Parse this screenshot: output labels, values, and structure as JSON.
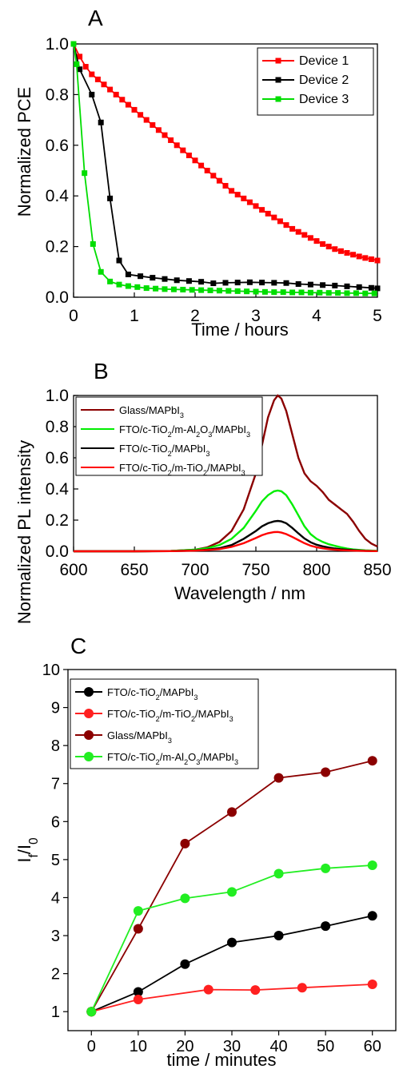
{
  "chart_data": [
    {
      "type": "line",
      "panel_label": "A",
      "xlabel": "Time / hours",
      "ylabel": "Normalized PCE",
      "xlim": [
        0,
        5
      ],
      "ylim": [
        0,
        1.0
      ],
      "x_ticks": [
        "0",
        "1",
        "2",
        "3",
        "4",
        "5"
      ],
      "y_ticks": [
        "0.0",
        "0.2",
        "0.4",
        "0.6",
        "0.8",
        "1.0"
      ],
      "legend_position": "top-right",
      "series": [
        {
          "name": "Device 1",
          "color": "#ff0000",
          "marker": "square",
          "x": [
            0.0,
            0.1,
            0.2,
            0.3,
            0.4,
            0.5,
            0.6,
            0.7,
            0.8,
            0.9,
            1.0,
            1.1,
            1.2,
            1.3,
            1.4,
            1.5,
            1.6,
            1.7,
            1.8,
            1.9,
            2.0,
            2.1,
            2.2,
            2.3,
            2.4,
            2.5,
            2.6,
            2.7,
            2.8,
            2.9,
            3.0,
            3.1,
            3.2,
            3.3,
            3.4,
            3.5,
            3.6,
            3.7,
            3.8,
            3.9,
            4.0,
            4.1,
            4.2,
            4.3,
            4.4,
            4.5,
            4.6,
            4.7,
            4.8,
            4.9,
            5.0
          ],
          "y": [
            1.0,
            0.95,
            0.91,
            0.88,
            0.86,
            0.84,
            0.82,
            0.8,
            0.78,
            0.76,
            0.74,
            0.72,
            0.7,
            0.68,
            0.66,
            0.64,
            0.62,
            0.6,
            0.58,
            0.56,
            0.54,
            0.52,
            0.5,
            0.48,
            0.46,
            0.44,
            0.42,
            0.405,
            0.39,
            0.375,
            0.36,
            0.345,
            0.33,
            0.315,
            0.3,
            0.285,
            0.27,
            0.258,
            0.246,
            0.234,
            0.222,
            0.21,
            0.2,
            0.19,
            0.182,
            0.175,
            0.168,
            0.161,
            0.155,
            0.15,
            0.145
          ]
        },
        {
          "name": "Device 2",
          "color": "#000000",
          "marker": "square",
          "x": [
            0.0,
            0.1,
            0.3,
            0.45,
            0.6,
            0.75,
            0.9,
            1.1,
            1.3,
            1.5,
            1.7,
            1.9,
            2.1,
            2.3,
            2.5,
            2.7,
            2.9,
            3.1,
            3.3,
            3.5,
            3.7,
            3.9,
            4.1,
            4.3,
            4.5,
            4.7,
            4.9,
            5.0
          ],
          "y": [
            1.0,
            0.9,
            0.8,
            0.69,
            0.39,
            0.145,
            0.09,
            0.083,
            0.077,
            0.072,
            0.067,
            0.064,
            0.061,
            0.055,
            0.057,
            0.058,
            0.059,
            0.058,
            0.057,
            0.056,
            0.052,
            0.05,
            0.048,
            0.046,
            0.043,
            0.04,
            0.037,
            0.035
          ]
        },
        {
          "name": "Device 3",
          "color": "#00dd00",
          "marker": "square",
          "x": [
            0.0,
            0.05,
            0.18,
            0.32,
            0.45,
            0.6,
            0.75,
            0.9,
            1.05,
            1.2,
            1.35,
            1.5,
            1.65,
            1.8,
            1.95,
            2.1,
            2.25,
            2.4,
            2.55,
            2.7,
            2.85,
            3.0,
            3.15,
            3.3,
            3.45,
            3.6,
            3.75,
            3.9,
            4.05,
            4.2,
            4.35,
            4.5,
            4.65,
            4.8,
            4.95
          ],
          "y": [
            1.0,
            0.92,
            0.49,
            0.21,
            0.1,
            0.062,
            0.05,
            0.044,
            0.04,
            0.036,
            0.034,
            0.032,
            0.031,
            0.03,
            0.029,
            0.028,
            0.027,
            0.026,
            0.025,
            0.024,
            0.023,
            0.022,
            0.021,
            0.02,
            0.02,
            0.019,
            0.019,
            0.018,
            0.018,
            0.017,
            0.017,
            0.016,
            0.016,
            0.015,
            0.015
          ]
        }
      ]
    },
    {
      "type": "line",
      "panel_label": "B",
      "xlabel": "Wavelength / nm",
      "ylabel": "Normalized PL intensity",
      "xlim": [
        600,
        850
      ],
      "ylim": [
        0,
        1.0
      ],
      "x_ticks": [
        "600",
        "650",
        "700",
        "750",
        "800",
        "850"
      ],
      "y_ticks": [
        "0.0",
        "0.2",
        "0.4",
        "0.6",
        "0.8",
        "1.0"
      ],
      "legend_position": "top-left",
      "series": [
        {
          "name_parts": [
            [
              "Glass/MAPbI",
              ""
            ],
            [
              "3",
              "sub"
            ]
          ],
          "color": "#8b0000",
          "x": [
            600,
            650,
            680,
            700,
            710,
            720,
            730,
            740,
            750,
            755,
            760,
            765,
            768,
            771,
            775,
            780,
            785,
            790,
            795,
            800,
            805,
            810,
            815,
            820,
            825,
            830,
            835,
            840,
            845,
            850
          ],
          "y": [
            0.0,
            0.0,
            0.002,
            0.01,
            0.025,
            0.06,
            0.13,
            0.27,
            0.5,
            0.68,
            0.86,
            0.97,
            1.0,
            0.98,
            0.9,
            0.75,
            0.6,
            0.5,
            0.45,
            0.42,
            0.38,
            0.33,
            0.3,
            0.27,
            0.24,
            0.19,
            0.13,
            0.08,
            0.05,
            0.03
          ]
        },
        {
          "name_parts": [
            [
              "FTO/c-TiO",
              ""
            ],
            [
              "2",
              "sub"
            ],
            [
              "/m-Al",
              ""
            ],
            [
              "2",
              "sub"
            ],
            [
              "O",
              ""
            ],
            [
              "3",
              "sub"
            ],
            [
              "/MAPbI",
              ""
            ],
            [
              "3",
              "sub"
            ]
          ],
          "color": "#00ee00",
          "x": [
            600,
            650,
            680,
            700,
            710,
            720,
            730,
            740,
            750,
            755,
            760,
            765,
            768,
            771,
            775,
            780,
            785,
            790,
            795,
            800,
            805,
            810,
            815,
            820,
            825,
            830,
            840,
            850
          ],
          "y": [
            0.0,
            0.0,
            0.002,
            0.01,
            0.02,
            0.04,
            0.08,
            0.15,
            0.26,
            0.32,
            0.36,
            0.385,
            0.39,
            0.385,
            0.36,
            0.3,
            0.23,
            0.16,
            0.11,
            0.08,
            0.06,
            0.045,
            0.035,
            0.025,
            0.018,
            0.012,
            0.006,
            0.003
          ]
        },
        {
          "name_parts": [
            [
              "FTO/c-TiO",
              ""
            ],
            [
              "2",
              "sub"
            ],
            [
              "/MAPbI",
              ""
            ],
            [
              "3",
              "sub"
            ]
          ],
          "color": "#000000",
          "x": [
            600,
            650,
            680,
            700,
            710,
            720,
            730,
            740,
            750,
            755,
            760,
            765,
            768,
            771,
            775,
            780,
            785,
            790,
            795,
            800,
            805,
            810,
            815,
            820,
            830,
            840,
            850
          ],
          "y": [
            0.0,
            0.0,
            0.001,
            0.005,
            0.01,
            0.02,
            0.04,
            0.08,
            0.13,
            0.16,
            0.18,
            0.192,
            0.195,
            0.192,
            0.18,
            0.15,
            0.115,
            0.082,
            0.058,
            0.042,
            0.032,
            0.024,
            0.018,
            0.013,
            0.007,
            0.003,
            0.001
          ]
        },
        {
          "name_parts": [
            [
              "FTO/c-TiO",
              ""
            ],
            [
              "2",
              "sub"
            ],
            [
              "/m-TiO",
              ""
            ],
            [
              "2",
              "sub"
            ],
            [
              "/MAPbI",
              ""
            ],
            [
              "3",
              "sub"
            ]
          ],
          "color": "#ff0000",
          "x": [
            600,
            650,
            680,
            700,
            710,
            720,
            730,
            740,
            750,
            755,
            760,
            765,
            768,
            771,
            775,
            780,
            785,
            790,
            795,
            800,
            805,
            810,
            815,
            820,
            830,
            840,
            850
          ],
          "y": [
            0.0,
            0.0,
            0.001,
            0.004,
            0.008,
            0.014,
            0.028,
            0.052,
            0.085,
            0.103,
            0.116,
            0.123,
            0.124,
            0.12,
            0.11,
            0.092,
            0.072,
            0.052,
            0.036,
            0.026,
            0.019,
            0.014,
            0.01,
            0.007,
            0.004,
            0.002,
            0.001
          ]
        }
      ]
    },
    {
      "type": "line",
      "panel_label": "C",
      "xlabel": "time / minutes",
      "ylabel_parts": [
        [
          "I",
          ""
        ],
        [
          "f",
          "sub"
        ],
        [
          "/I",
          ""
        ],
        [
          "0",
          "sub"
        ]
      ],
      "xlim": [
        -5,
        65
      ],
      "ylim": [
        0.5,
        10
      ],
      "x_ticks": [
        "0",
        "10",
        "20",
        "30",
        "40",
        "50",
        "60"
      ],
      "y_ticks": [
        "1",
        "2",
        "3",
        "4",
        "5",
        "6",
        "7",
        "8",
        "9",
        "10"
      ],
      "legend_position": "top-left",
      "series": [
        {
          "name_parts": [
            [
              "FTO/c-TiO",
              ""
            ],
            [
              "2",
              "sub"
            ],
            [
              "/MAPbI",
              ""
            ],
            [
              "3",
              "sub"
            ]
          ],
          "color": "#000000",
          "marker": "circle",
          "x": [
            0,
            10,
            20,
            30,
            40,
            50,
            60
          ],
          "y": [
            1.0,
            1.52,
            2.25,
            2.82,
            3.0,
            3.25,
            3.52
          ]
        },
        {
          "name_parts": [
            [
              "FTO/c-TiO",
              ""
            ],
            [
              "2",
              "sub"
            ],
            [
              "/m-TiO",
              ""
            ],
            [
              "2",
              "sub"
            ],
            [
              "/MAPbI",
              ""
            ],
            [
              "3",
              "sub"
            ]
          ],
          "color": "#ff2020",
          "marker": "circle",
          "x": [
            0,
            10,
            25,
            35,
            45,
            60
          ],
          "y": [
            1.0,
            1.32,
            1.58,
            1.57,
            1.63,
            1.72
          ]
        },
        {
          "name_parts": [
            [
              "Glass/MAPbI",
              ""
            ],
            [
              "3",
              "sub"
            ]
          ],
          "color": "#8b0000",
          "marker": "circle",
          "x": [
            0,
            10,
            20,
            30,
            40,
            50,
            60
          ],
          "y": [
            1.0,
            3.18,
            5.42,
            6.25,
            7.15,
            7.3,
            7.6
          ]
        },
        {
          "name_parts": [
            [
              "FTO/c-TiO",
              ""
            ],
            [
              "2",
              "sub"
            ],
            [
              "/m-Al",
              ""
            ],
            [
              "2",
              "sub"
            ],
            [
              "O",
              ""
            ],
            [
              "3",
              "sub"
            ],
            [
              "/MAPbI",
              ""
            ],
            [
              "3",
              "sub"
            ]
          ],
          "color": "#22ee22",
          "marker": "circle",
          "x": [
            0,
            10,
            20,
            30,
            40,
            50,
            60
          ],
          "y": [
            1.0,
            3.65,
            3.98,
            4.15,
            4.63,
            4.77,
            4.85
          ]
        }
      ]
    }
  ]
}
